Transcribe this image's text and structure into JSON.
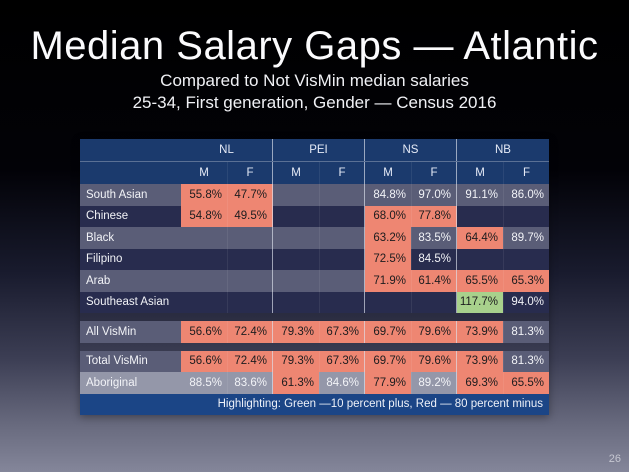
{
  "slide": {
    "title": "Median Salary Gaps — Atlantic",
    "subtitle1": "Compared to Not VisMin median salaries",
    "subtitle2": "25-34, First generation, Gender — Census 2016",
    "page_number": "26"
  },
  "colors": {
    "header_bg": "#1b3a6d",
    "footer_bg": "#1b4586",
    "row_dark": "#282c4e",
    "row_light": "#5a5d77",
    "row_gray": "#9497a9",
    "highlight_red": "#ee8672",
    "highlight_green": "#a8d18c"
  },
  "chart_data": {
    "type": "table",
    "title": "Median Salary Gaps — Atlantic",
    "province_groups": [
      "NL",
      "PEI",
      "NS",
      "NB"
    ],
    "gender_headers": [
      "M",
      "F",
      "M",
      "F",
      "M",
      "F",
      "M",
      "F"
    ],
    "legend": "Highlighting: Green —10 percent plus, Red — 80 percent minus",
    "rows": [
      {
        "label": "South Asian",
        "shade": "light",
        "cells": [
          {
            "v": "55.8%",
            "h": "red"
          },
          {
            "v": "47.7%",
            "h": "red"
          },
          {
            "v": ""
          },
          {
            "v": ""
          },
          {
            "v": "84.8%"
          },
          {
            "v": "97.0%"
          },
          {
            "v": "91.1%"
          },
          {
            "v": "86.0%"
          }
        ]
      },
      {
        "label": "Chinese",
        "shade": "dark",
        "cells": [
          {
            "v": "54.8%",
            "h": "red"
          },
          {
            "v": "49.5%",
            "h": "red"
          },
          {
            "v": ""
          },
          {
            "v": ""
          },
          {
            "v": "68.0%",
            "h": "red"
          },
          {
            "v": "77.8%",
            "h": "red"
          },
          {
            "v": ""
          },
          {
            "v": ""
          }
        ]
      },
      {
        "label": "Black",
        "shade": "light",
        "cells": [
          {
            "v": ""
          },
          {
            "v": ""
          },
          {
            "v": ""
          },
          {
            "v": ""
          },
          {
            "v": "63.2%",
            "h": "red"
          },
          {
            "v": "83.5%"
          },
          {
            "v": "64.4%",
            "h": "red"
          },
          {
            "v": "89.7%"
          }
        ]
      },
      {
        "label": "Filipino",
        "shade": "dark",
        "cells": [
          {
            "v": ""
          },
          {
            "v": ""
          },
          {
            "v": ""
          },
          {
            "v": ""
          },
          {
            "v": "72.5%",
            "h": "red"
          },
          {
            "v": "84.5%"
          },
          {
            "v": ""
          },
          {
            "v": ""
          }
        ]
      },
      {
        "label": "Arab",
        "shade": "light",
        "cells": [
          {
            "v": ""
          },
          {
            "v": ""
          },
          {
            "v": ""
          },
          {
            "v": ""
          },
          {
            "v": "71.9%",
            "h": "red"
          },
          {
            "v": "61.4%",
            "h": "red"
          },
          {
            "v": "65.5%",
            "h": "red"
          },
          {
            "v": "65.3%",
            "h": "red"
          }
        ]
      },
      {
        "label": "Southeast Asian",
        "shade": "dark",
        "cells": [
          {
            "v": ""
          },
          {
            "v": ""
          },
          {
            "v": ""
          },
          {
            "v": ""
          },
          {
            "v": ""
          },
          {
            "v": ""
          },
          {
            "v": "117.7%",
            "h": "green"
          },
          {
            "v": "94.0%"
          }
        ]
      },
      {
        "type": "spacer"
      },
      {
        "label": "All VisMin",
        "shade": "light",
        "cells": [
          {
            "v": "56.6%",
            "h": "red"
          },
          {
            "v": "72.4%",
            "h": "red"
          },
          {
            "v": "79.3%",
            "h": "red"
          },
          {
            "v": "67.3%",
            "h": "red"
          },
          {
            "v": "69.7%",
            "h": "red"
          },
          {
            "v": "79.6%",
            "h": "red"
          },
          {
            "v": "73.9%",
            "h": "red"
          },
          {
            "v": "81.3%"
          }
        ]
      },
      {
        "type": "spacer"
      },
      {
        "label": "Total VisMin",
        "shade": "light",
        "cells": [
          {
            "v": "56.6%",
            "h": "red"
          },
          {
            "v": "72.4%",
            "h": "red"
          },
          {
            "v": "79.3%",
            "h": "red"
          },
          {
            "v": "67.3%",
            "h": "red"
          },
          {
            "v": "69.7%",
            "h": "red"
          },
          {
            "v": "79.6%",
            "h": "red"
          },
          {
            "v": "73.9%",
            "h": "red"
          },
          {
            "v": "81.3%"
          }
        ]
      },
      {
        "label": "Aboriginal",
        "shade": "gray",
        "cells": [
          {
            "v": "88.5%"
          },
          {
            "v": "83.6%"
          },
          {
            "v": "61.3%",
            "h": "red"
          },
          {
            "v": "84.6%"
          },
          {
            "v": "77.9%",
            "h": "red"
          },
          {
            "v": "89.2%"
          },
          {
            "v": "69.3%",
            "h": "red"
          },
          {
            "v": "65.5%",
            "h": "red"
          }
        ]
      }
    ]
  }
}
